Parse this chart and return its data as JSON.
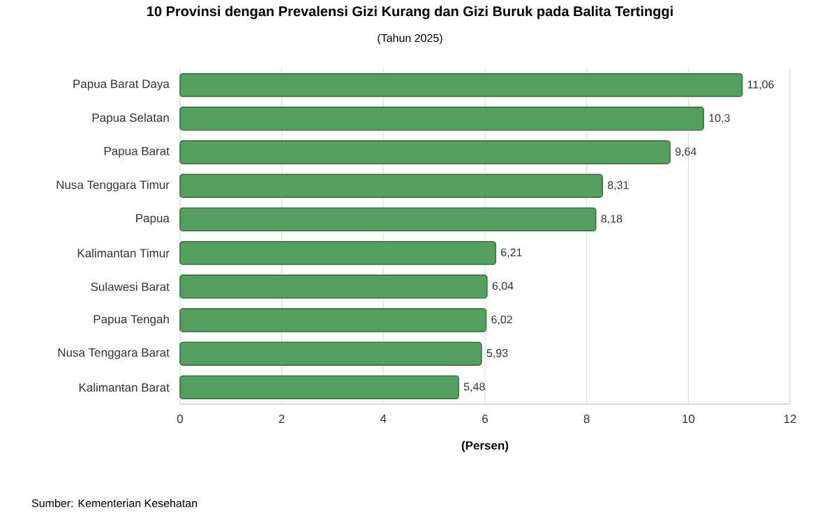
{
  "chart_data": {
    "type": "bar",
    "orientation": "horizontal",
    "title": "10 Provinsi dengan Prevalensi Gizi Kurang dan Gizi Buruk pada Balita Tertinggi",
    "subtitle": "(Tahun 2025)",
    "xlabel": "(Persen)",
    "categories": [
      "Papua Barat Daya",
      "Papua Selatan",
      "Papua Barat",
      "Nusa Tenggara Timur",
      "Papua",
      "Kalimantan Timur",
      "Sulawesi Barat",
      "Papua Tengah",
      "Nusa Tenggara Barat",
      "Kalimantan Barat"
    ],
    "values": [
      11.06,
      10.3,
      9.64,
      8.31,
      8.18,
      6.21,
      6.04,
      6.02,
      5.93,
      5.48
    ],
    "value_labels": [
      "11,06",
      "10,3",
      "9,64",
      "8,31",
      "8,18",
      "6,21",
      "6,04",
      "6,02",
      "5,93",
      "5,48"
    ],
    "color": "#55a05f",
    "xlim": [
      0,
      12
    ],
    "xticks": [
      0,
      2,
      4,
      6,
      8,
      10,
      12
    ],
    "grid": "x",
    "annotations": [
      "Sumber: Kementerian Kesehatan"
    ]
  }
}
